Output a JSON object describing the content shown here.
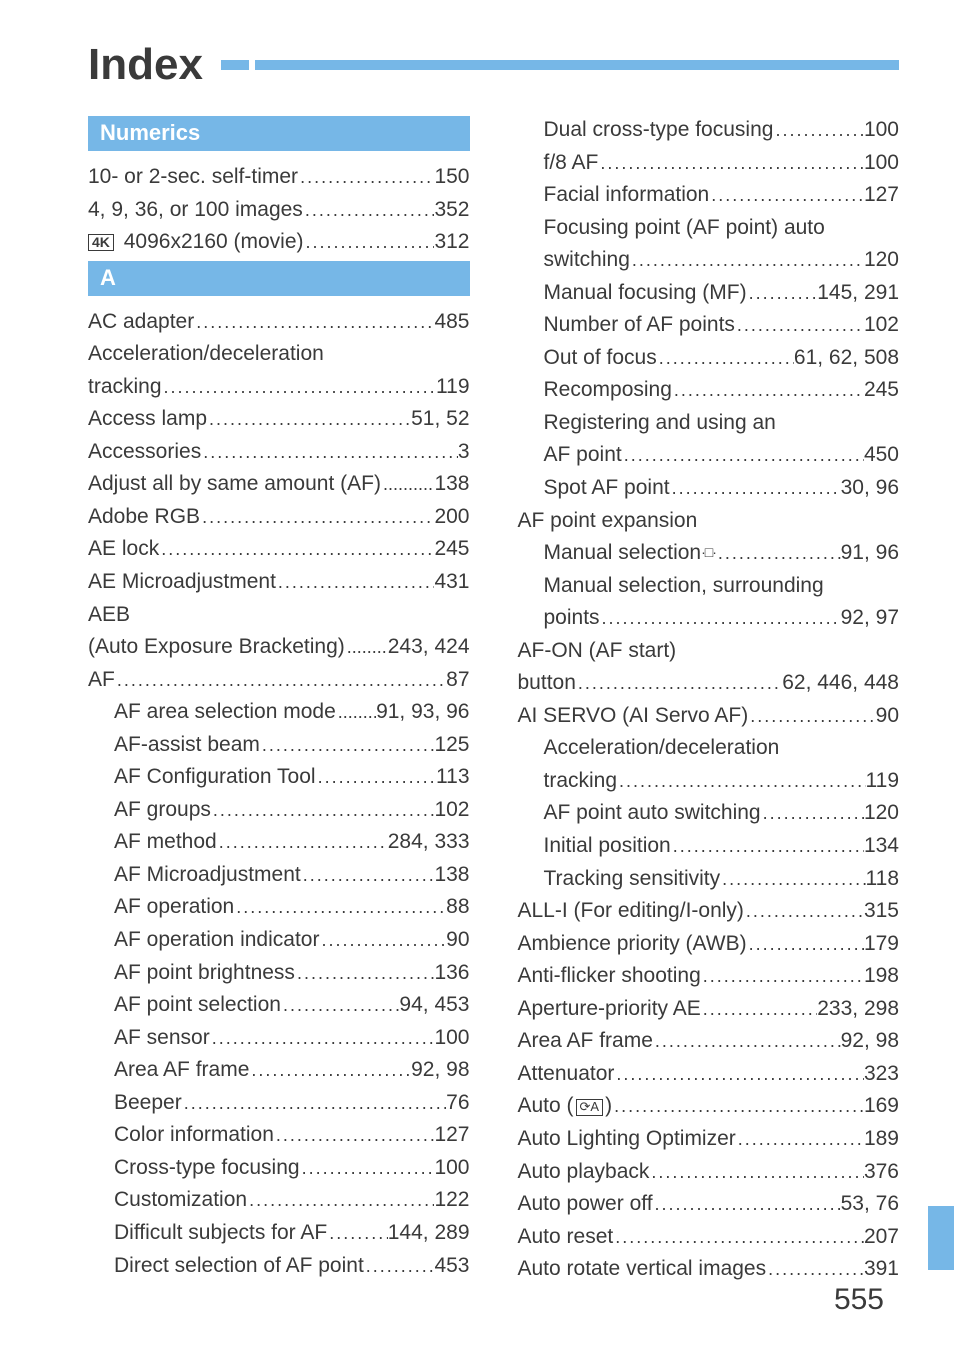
{
  "title": "Index",
  "page_number": "555",
  "colors": {
    "accent": "#76b7e7",
    "text": "#3a3a3a",
    "background": "#ffffff"
  },
  "left": {
    "sections": [
      {
        "header": "Numerics",
        "entries": [
          {
            "label": "10- or 2-sec. self-timer",
            "pages": "150",
            "indent": 0
          },
          {
            "label": "4, 9, 36, or 100 images",
            "pages": "352",
            "indent": 0
          },
          {
            "label_prefix_icon": "4K",
            "label": " 4096x2160 (movie)",
            "pages": "312",
            "indent": 0
          }
        ]
      },
      {
        "header": "A",
        "entries": [
          {
            "label": "AC adapter",
            "pages": "485",
            "indent": 0
          },
          {
            "label": "Acceleration/deceleration",
            "nobreak": true,
            "indent": 0
          },
          {
            "label": "tracking",
            "pages": "119",
            "indent": 0
          },
          {
            "label": "Access lamp",
            "pages": "51, 52",
            "indent": 0
          },
          {
            "label": "Accessories",
            "pages": "3",
            "indent": 0
          },
          {
            "label": "Adjust all by same amount (AF)",
            "pages": "138",
            "indent": 0,
            "tight": true
          },
          {
            "label": "Adobe RGB",
            "pages": "200",
            "indent": 0
          },
          {
            "label": "AE lock",
            "pages": "245",
            "indent": 0
          },
          {
            "label": "AE Microadjustment",
            "pages": "431",
            "indent": 0
          },
          {
            "label": "AEB",
            "nobreak": true,
            "indent": 0
          },
          {
            "label": "(Auto Exposure Bracketing)",
            "pages": "243, 424",
            "indent": 0,
            "tight": true
          },
          {
            "label": "AF",
            "pages": "87",
            "indent": 0
          },
          {
            "label": "AF area selection mode",
            "pages": "91, 93, 96",
            "indent": 1,
            "tight": true
          },
          {
            "label": "AF-assist beam",
            "pages": "125",
            "indent": 1
          },
          {
            "label": "AF Configuration Tool",
            "pages": "113",
            "indent": 1
          },
          {
            "label": "AF groups",
            "pages": "102",
            "indent": 1
          },
          {
            "label": "AF method",
            "pages": "284, 333",
            "indent": 1
          },
          {
            "label": "AF Microadjustment",
            "pages": "138",
            "indent": 1
          },
          {
            "label": "AF operation",
            "pages": "88",
            "indent": 1
          },
          {
            "label": "AF operation indicator",
            "pages": "90",
            "indent": 1
          },
          {
            "label": "AF point brightness",
            "pages": "136",
            "indent": 1
          },
          {
            "label": "AF point selection",
            "pages": "94, 453",
            "indent": 1
          },
          {
            "label": "AF sensor",
            "pages": "100",
            "indent": 1
          },
          {
            "label": "Area AF frame",
            "pages": "92, 98",
            "indent": 1
          },
          {
            "label": "Beeper",
            "pages": "76",
            "indent": 1
          },
          {
            "label": "Color information",
            "pages": "127",
            "indent": 1
          },
          {
            "label": "Cross-type focusing",
            "pages": "100",
            "indent": 1
          },
          {
            "label": "Customization",
            "pages": "122",
            "indent": 1
          },
          {
            "label": "Difficult subjects for AF",
            "pages": "144, 289",
            "indent": 1
          },
          {
            "label": "Direct selection of AF point",
            "pages": "453",
            "indent": 1
          }
        ]
      }
    ]
  },
  "right": {
    "entries": [
      {
        "label": "Dual cross-type focusing",
        "pages": "100",
        "indent": 1
      },
      {
        "label": "f/8 AF",
        "pages": "100",
        "indent": 1
      },
      {
        "label": "Facial information",
        "pages": "127",
        "indent": 1
      },
      {
        "label": "Focusing point (AF point) auto",
        "nobreak": true,
        "indent": 1
      },
      {
        "label": "switching",
        "pages": "120",
        "indent": 1
      },
      {
        "label": "Manual focusing (MF)",
        "pages": "145, 291",
        "indent": 1
      },
      {
        "label": "Number of AF points",
        "pages": "102",
        "indent": 1
      },
      {
        "label": "Out of focus",
        "pages": "61, 62, 508",
        "indent": 1
      },
      {
        "label": "Recomposing",
        "pages": "245",
        "indent": 1
      },
      {
        "label": "Registering and using an",
        "nobreak": true,
        "indent": 1
      },
      {
        "label": "AF point",
        "pages": "450",
        "indent": 1
      },
      {
        "label": "Spot AF point",
        "pages": "30, 96",
        "indent": 1
      },
      {
        "label": "AF point expansion",
        "nobreak": true,
        "indent": 0
      },
      {
        "label": "Manual selection",
        "label_suffix_icon": "expand",
        "pages": "91, 96",
        "indent": 1
      },
      {
        "label": "Manual selection, surrounding",
        "nobreak": true,
        "indent": 1
      },
      {
        "label": "points",
        "pages": "92, 97",
        "indent": 1
      },
      {
        "label": "AF-ON (AF start)",
        "nobreak": true,
        "indent": 0
      },
      {
        "label": "button",
        "pages": "62, 446, 448",
        "indent": 0
      },
      {
        "label": "AI SERVO (AI Servo AF)",
        "pages": "90",
        "indent": 0
      },
      {
        "label": "Acceleration/deceleration",
        "nobreak": true,
        "indent": 1
      },
      {
        "label": "tracking",
        "pages": "119",
        "indent": 1
      },
      {
        "label": "AF point auto switching",
        "pages": "120",
        "indent": 1
      },
      {
        "label": "Initial position",
        "pages": "134",
        "indent": 1
      },
      {
        "label": "Tracking sensitivity",
        "pages": "118",
        "indent": 1
      },
      {
        "label": "ALL-I (For editing/I-only)",
        "pages": "315",
        "indent": 0
      },
      {
        "label": "Ambience priority (AWB)",
        "pages": "179",
        "indent": 0
      },
      {
        "label": "Anti-flicker shooting",
        "pages": "198",
        "indent": 0
      },
      {
        "label": "Aperture-priority AE",
        "pages": "233, 298",
        "indent": 0
      },
      {
        "label": "Area AF frame",
        "pages": "92, 98",
        "indent": 0
      },
      {
        "label": "Attenuator",
        "pages": "323",
        "indent": 0
      },
      {
        "label": "Auto (",
        "label_mid_icon": "auto",
        "label_after": ")",
        "pages": "169",
        "indent": 0
      },
      {
        "label": "Auto Lighting Optimizer",
        "pages": "189",
        "indent": 0
      },
      {
        "label": "Auto playback",
        "pages": "376",
        "indent": 0
      },
      {
        "label": "Auto power off",
        "pages": "53, 76",
        "indent": 0
      },
      {
        "label": "Auto reset",
        "pages": "207",
        "indent": 0
      },
      {
        "label": "Auto rotate vertical images",
        "pages": "391",
        "indent": 0
      }
    ]
  }
}
